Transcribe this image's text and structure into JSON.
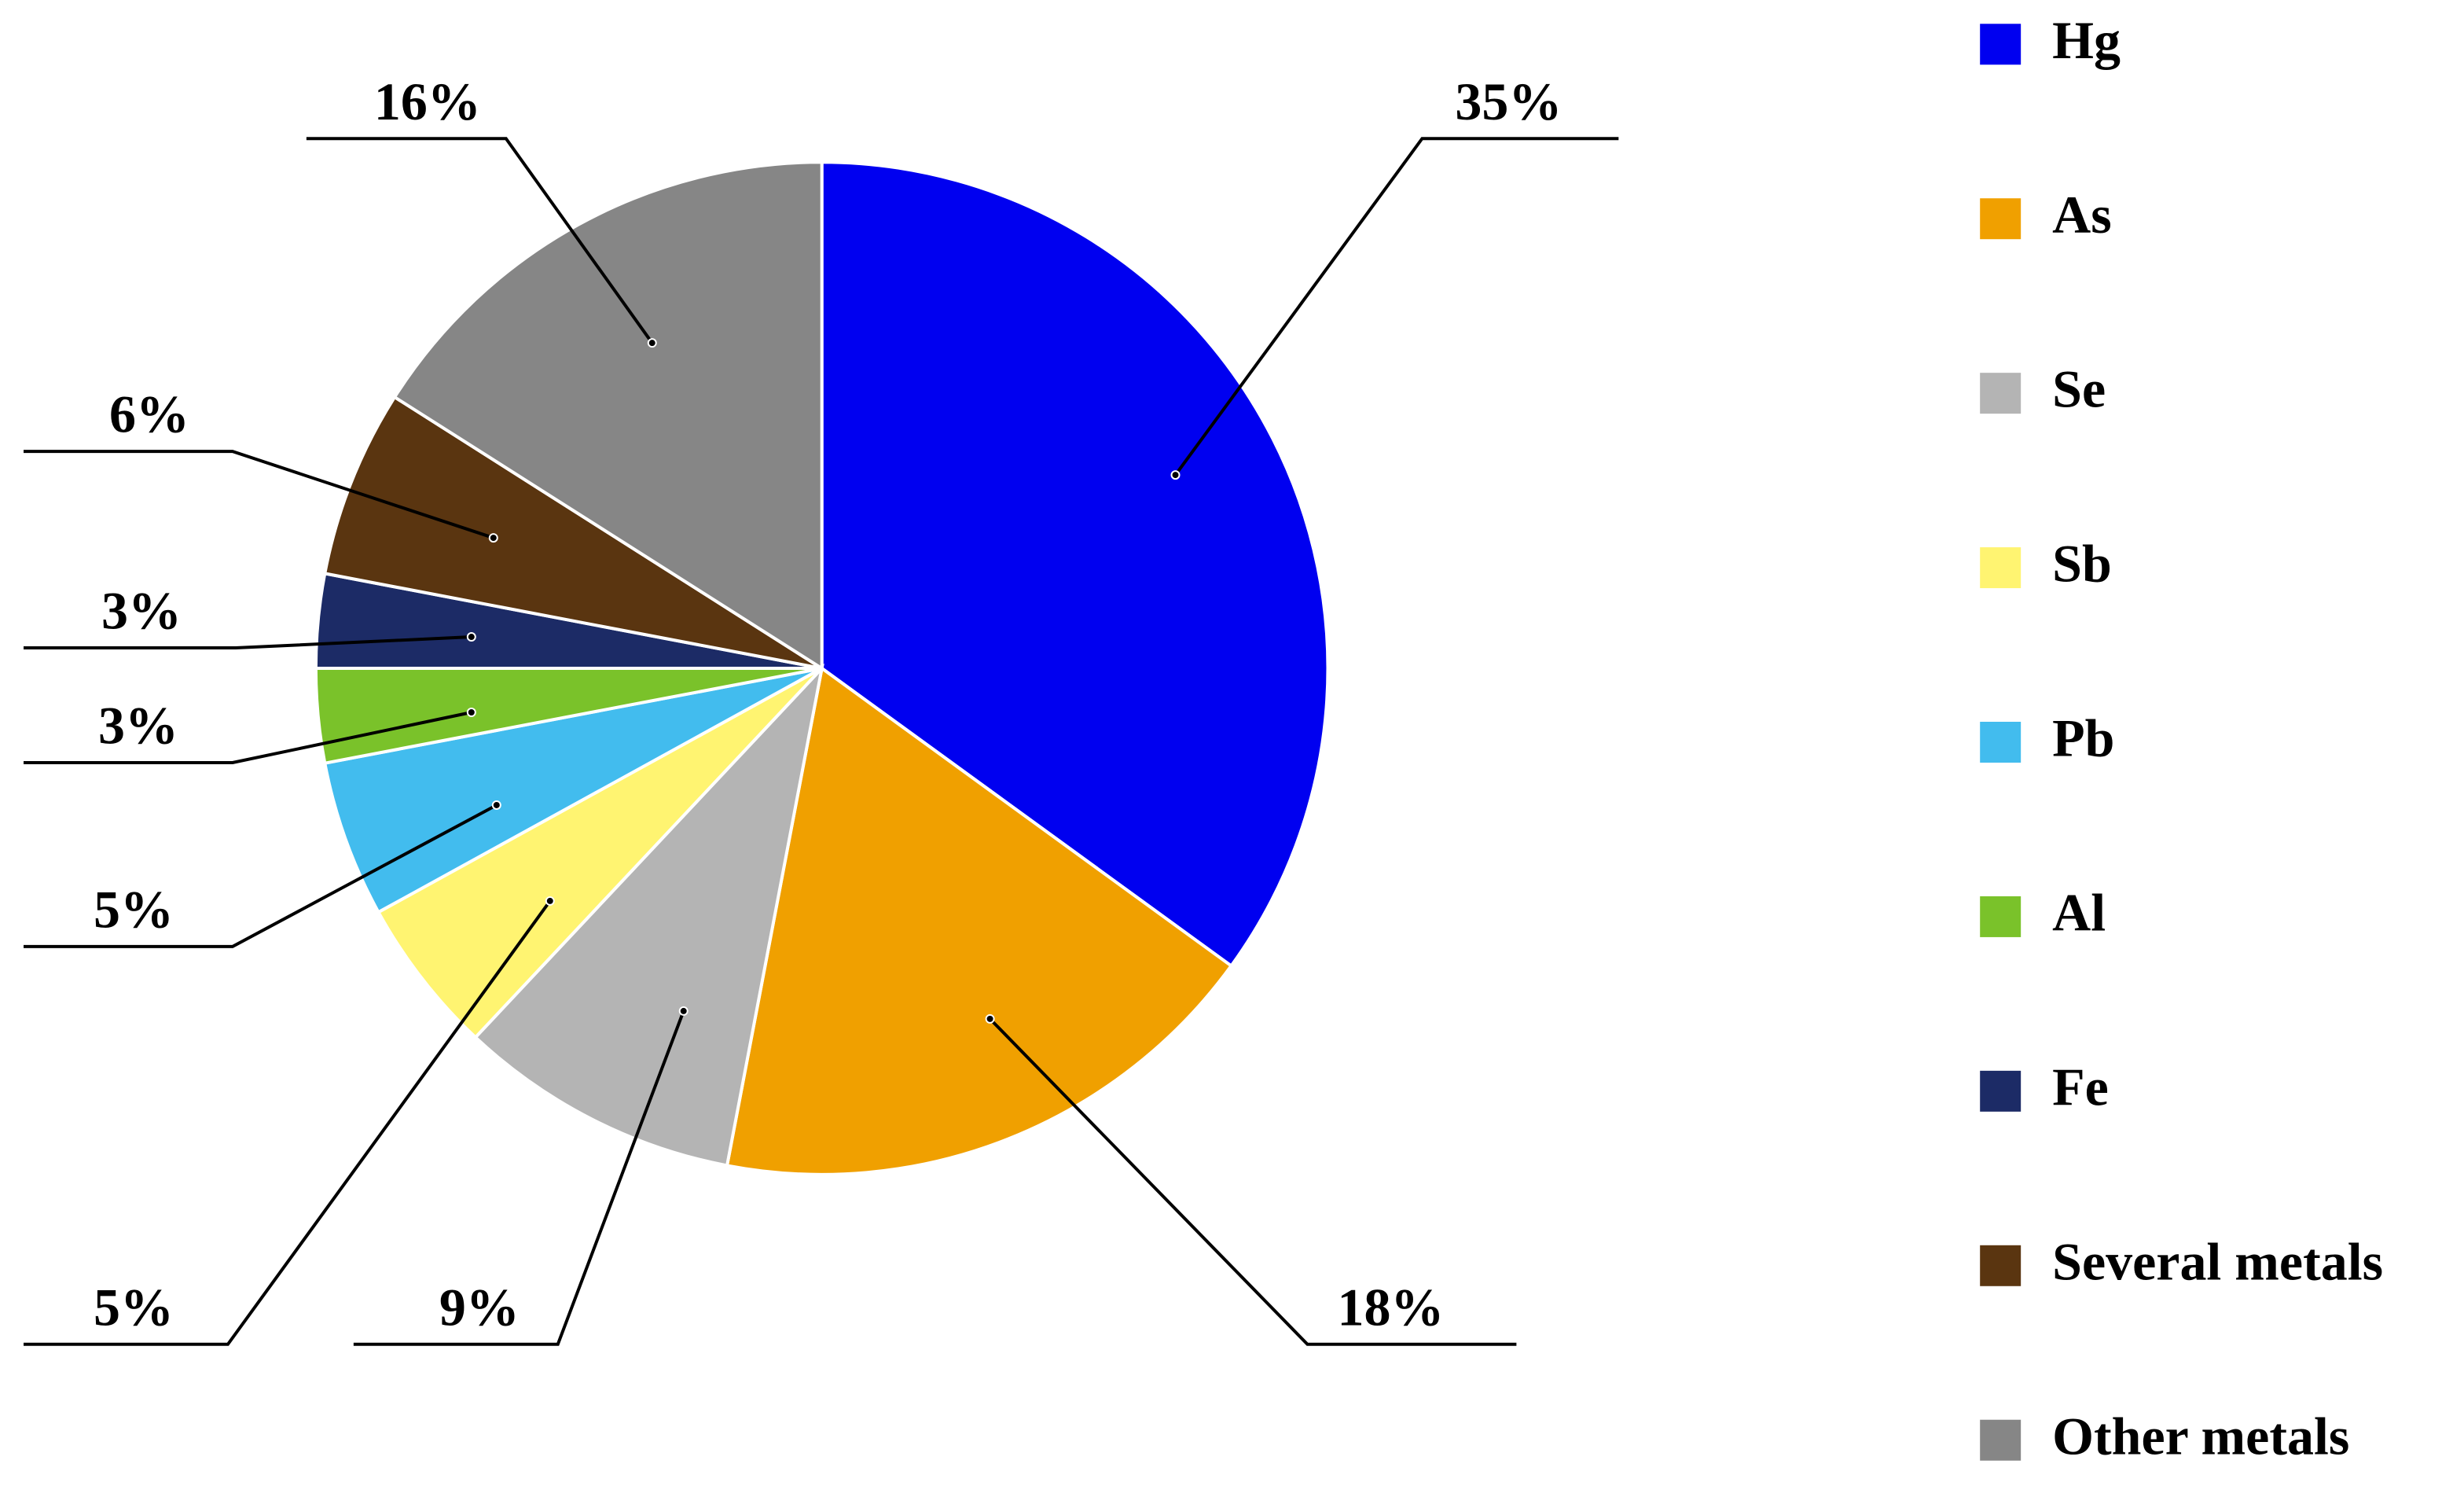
{
  "chart_data": {
    "type": "pie",
    "categories": [
      "Hg",
      "As",
      "Se",
      "Sb",
      "Pb",
      "Al",
      "Fe",
      "Several metals",
      "Other metals"
    ],
    "values": [
      35,
      18,
      9,
      5,
      5,
      3,
      3,
      6,
      16
    ],
    "value_labels": [
      "35%",
      "18%",
      "9%",
      "5%",
      "5%",
      "3%",
      "3%",
      "6%",
      "16%"
    ],
    "colors": [
      "#0000f0",
      "#f0a000",
      "#b4b4b4",
      "#fff471",
      "#42bcee",
      "#7ac22a",
      "#1c2b66",
      "#5a3510",
      "#868686"
    ],
    "legend": "right"
  }
}
